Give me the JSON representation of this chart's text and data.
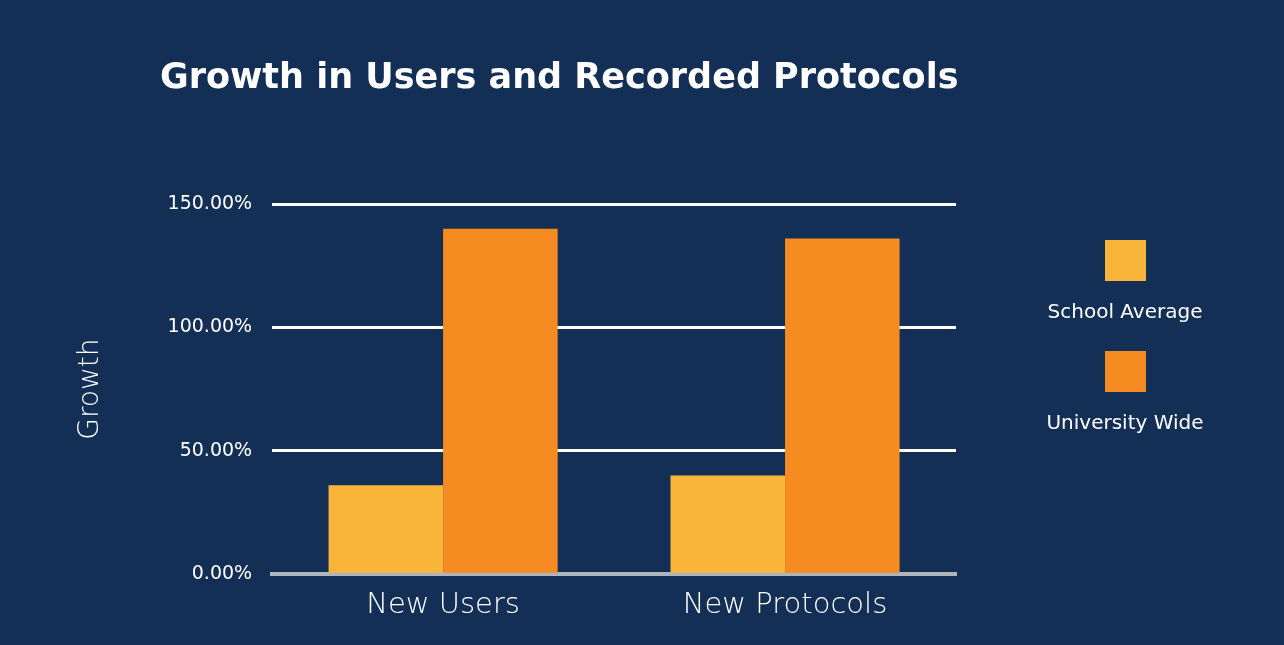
{
  "chart_data": {
    "type": "bar",
    "title": "Growth in Users and Recorded Protocols",
    "ylabel": "Growth",
    "categories": [
      "New Users",
      "New Protocols"
    ],
    "series": [
      {
        "name": "School Average",
        "color": "#f9b53a",
        "values": [
          36,
          40
        ]
      },
      {
        "name": "University Wide",
        "color": "#f58b21",
        "values": [
          140,
          136
        ]
      }
    ],
    "ylim": [
      0,
      150
    ],
    "yticks": [
      {
        "value": 0,
        "label": "0.00%"
      },
      {
        "value": 50,
        "label": "50.00%"
      },
      {
        "value": 100,
        "label": "100.00%"
      },
      {
        "value": 150,
        "label": "150.00%"
      }
    ],
    "grid": "y",
    "legend": "right"
  }
}
